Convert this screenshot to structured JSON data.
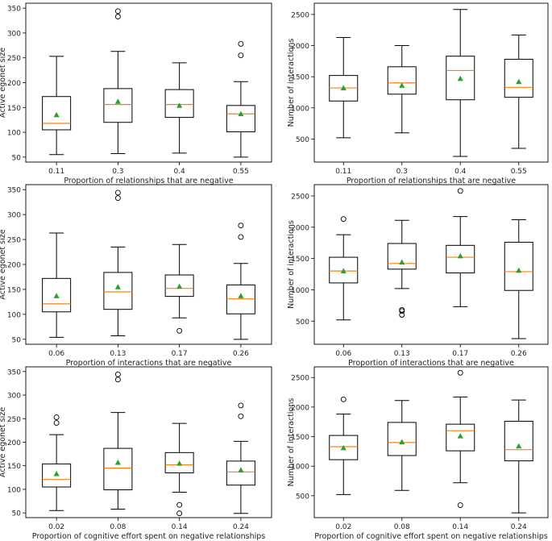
{
  "colors": {
    "median": "#ff7f0e",
    "mean_marker": "#2ca02c",
    "box_edge": "#000000",
    "background": "#ffffff"
  },
  "chart_data": [
    {
      "type": "box",
      "xlabel": "Proportion of relationships that are negative",
      "ylabel": "Active egonet size",
      "categories": [
        "0.11",
        "0.3",
        "0.4",
        "0.55"
      ],
      "yticks": [
        50,
        100,
        150,
        200,
        250,
        300,
        350
      ],
      "ylim": [
        40,
        360
      ],
      "boxes": [
        {
          "whislo": 55,
          "q1": 105,
          "med": 118,
          "q3": 172,
          "whishi": 253,
          "mean": 135,
          "fliers": []
        },
        {
          "whislo": 57,
          "q1": 120,
          "med": 156,
          "q3": 188,
          "whishi": 263,
          "mean": 162,
          "fliers": [
            333,
            344
          ]
        },
        {
          "whislo": 58,
          "q1": 130,
          "med": 156,
          "q3": 186,
          "whishi": 240,
          "mean": 154,
          "fliers": []
        },
        {
          "whislo": 50,
          "q1": 101,
          "med": 137,
          "q3": 154,
          "whishi": 202,
          "mean": 137,
          "fliers": [
            255,
            278
          ]
        }
      ]
    },
    {
      "type": "box",
      "xlabel": "Proportion of relationships that are negative",
      "ylabel": "Number of interactions",
      "categories": [
        "0.11",
        "0.3",
        "0.4",
        "0.55"
      ],
      "yticks": [
        500,
        1000,
        1500,
        2000,
        2500
      ],
      "ylim": [
        130,
        2680
      ],
      "boxes": [
        {
          "whislo": 520,
          "q1": 1110,
          "med": 1320,
          "q3": 1520,
          "whishi": 2130,
          "mean": 1320,
          "fliers": []
        },
        {
          "whislo": 600,
          "q1": 1220,
          "med": 1400,
          "q3": 1660,
          "whishi": 2000,
          "mean": 1360,
          "fliers": []
        },
        {
          "whislo": 220,
          "q1": 1130,
          "med": 1600,
          "q3": 1830,
          "whishi": 2580,
          "mean": 1470,
          "fliers": []
        },
        {
          "whislo": 350,
          "q1": 1170,
          "med": 1330,
          "q3": 1780,
          "whishi": 2170,
          "mean": 1420,
          "fliers": []
        }
      ]
    },
    {
      "type": "box",
      "xlabel": "Proportion of interactions that are negative",
      "ylabel": "Active egonet size",
      "categories": [
        "0.06",
        "0.13",
        "0.17",
        "0.26"
      ],
      "yticks": [
        50,
        100,
        150,
        200,
        250,
        300,
        350
      ],
      "ylim": [
        40,
        360
      ],
      "boxes": [
        {
          "whislo": 54,
          "q1": 105,
          "med": 121,
          "q3": 172,
          "whishi": 263,
          "mean": 137,
          "fliers": []
        },
        {
          "whislo": 57,
          "q1": 110,
          "med": 145,
          "q3": 184,
          "whishi": 235,
          "mean": 155,
          "fliers": [
            333,
            344
          ]
        },
        {
          "whislo": 93,
          "q1": 136,
          "med": 152,
          "q3": 179,
          "whishi": 240,
          "mean": 156,
          "fliers": [
            67
          ]
        },
        {
          "whislo": 50,
          "q1": 101,
          "med": 131,
          "q3": 159,
          "whishi": 202,
          "mean": 137,
          "fliers": [
            255,
            278
          ]
        }
      ]
    },
    {
      "type": "box",
      "xlabel": "Proportion of interactions that are negative",
      "ylabel": "Number of interactions",
      "categories": [
        "0.06",
        "0.13",
        "0.17",
        "0.26"
      ],
      "yticks": [
        500,
        1000,
        1500,
        2000,
        2500
      ],
      "ylim": [
        130,
        2680
      ],
      "boxes": [
        {
          "whislo": 520,
          "q1": 1110,
          "med": 1300,
          "q3": 1520,
          "whishi": 1880,
          "mean": 1300,
          "fliers": [
            2130
          ]
        },
        {
          "whislo": 1020,
          "q1": 1330,
          "med": 1420,
          "q3": 1740,
          "whishi": 2110,
          "mean": 1440,
          "fliers": [
            600,
            660,
            680
          ]
        },
        {
          "whislo": 730,
          "q1": 1270,
          "med": 1520,
          "q3": 1710,
          "whishi": 2170,
          "mean": 1540,
          "fliers": [
            2580
          ]
        },
        {
          "whislo": 220,
          "q1": 990,
          "med": 1290,
          "q3": 1760,
          "whishi": 2120,
          "mean": 1310,
          "fliers": []
        }
      ]
    },
    {
      "type": "box",
      "xlabel": "Proportion of cognitive effort spent on negative relationships",
      "ylabel": "Active egonet size",
      "categories": [
        "0.02",
        "0.08",
        "0.14",
        "0.24"
      ],
      "yticks": [
        50,
        100,
        150,
        200,
        250,
        300,
        350
      ],
      "ylim": [
        40,
        360
      ],
      "boxes": [
        {
          "whislo": 55,
          "q1": 105,
          "med": 121,
          "q3": 154,
          "whishi": 216,
          "mean": 133,
          "fliers": [
            241,
            253
          ]
        },
        {
          "whislo": 58,
          "q1": 99,
          "med": 145,
          "q3": 187,
          "whishi": 263,
          "mean": 157,
          "fliers": [
            333,
            344
          ]
        },
        {
          "whislo": 94,
          "q1": 135,
          "med": 152,
          "q3": 178,
          "whishi": 240,
          "mean": 155,
          "fliers": [
            49,
            67
          ]
        },
        {
          "whislo": 49,
          "q1": 109,
          "med": 137,
          "q3": 160,
          "whishi": 202,
          "mean": 141,
          "fliers": [
            255,
            278
          ]
        }
      ]
    },
    {
      "type": "box",
      "xlabel": "Proportion of cognitive effort spent on negative relationships",
      "ylabel": "Number of interactions",
      "categories": [
        "0.02",
        "0.08",
        "0.14",
        "0.24"
      ],
      "yticks": [
        500,
        1000,
        1500,
        2000,
        2500
      ],
      "ylim": [
        130,
        2680
      ],
      "boxes": [
        {
          "whislo": 520,
          "q1": 1110,
          "med": 1330,
          "q3": 1520,
          "whishi": 1880,
          "mean": 1310,
          "fliers": [
            2130
          ]
        },
        {
          "whislo": 590,
          "q1": 1180,
          "med": 1400,
          "q3": 1740,
          "whishi": 2110,
          "mean": 1410,
          "fliers": []
        },
        {
          "whislo": 720,
          "q1": 1260,
          "med": 1600,
          "q3": 1710,
          "whishi": 2170,
          "mean": 1510,
          "fliers": [
            340,
            2580
          ]
        },
        {
          "whislo": 210,
          "q1": 1090,
          "med": 1280,
          "q3": 1760,
          "whishi": 2120,
          "mean": 1340,
          "fliers": []
        }
      ]
    }
  ]
}
